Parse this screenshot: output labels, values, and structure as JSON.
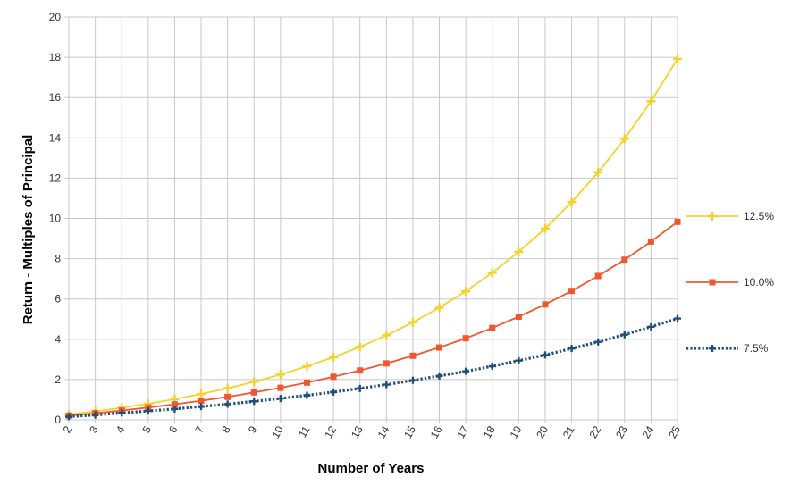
{
  "chart_data": {
    "type": "line",
    "title": "",
    "xlabel": "Number of Years",
    "ylabel": "Return - Multiples of Principal",
    "x": [
      2,
      3,
      4,
      5,
      6,
      7,
      8,
      9,
      10,
      11,
      12,
      13,
      14,
      15,
      16,
      17,
      18,
      19,
      20,
      21,
      22,
      23,
      24,
      25
    ],
    "ylim": [
      0,
      20
    ],
    "yticks": [
      0,
      2,
      4,
      6,
      8,
      10,
      12,
      14,
      16,
      18,
      20
    ],
    "grid": true,
    "legend_position": "right",
    "series": [
      {
        "name": "12.5%",
        "color": "#F5D22B",
        "marker": "star",
        "line_style": "solid",
        "values": [
          0.27,
          0.42,
          0.6,
          0.8,
          1.03,
          1.28,
          1.57,
          1.89,
          2.25,
          2.66,
          3.11,
          3.62,
          4.2,
          4.84,
          5.57,
          6.38,
          7.3,
          8.34,
          9.5,
          10.81,
          12.29,
          13.95,
          15.82,
          17.92
        ]
      },
      {
        "name": "10.0%",
        "color": "#F0572E",
        "marker": "square",
        "line_style": "solid",
        "values": [
          0.21,
          0.33,
          0.46,
          0.61,
          0.77,
          0.95,
          1.14,
          1.36,
          1.59,
          1.85,
          2.14,
          2.45,
          2.8,
          3.18,
          3.59,
          4.05,
          4.56,
          5.12,
          5.73,
          6.4,
          7.14,
          7.95,
          8.85,
          9.83
        ]
      },
      {
        "name": "7.5%",
        "color": "#1F4E79",
        "marker": "star",
        "line_style": "dotted",
        "values": [
          0.16,
          0.24,
          0.34,
          0.44,
          0.54,
          0.66,
          0.78,
          0.92,
          1.06,
          1.22,
          1.38,
          1.56,
          1.75,
          1.96,
          2.18,
          2.41,
          2.66,
          2.94,
          3.22,
          3.54,
          3.87,
          4.23,
          4.62,
          5.03
        ]
      }
    ]
  }
}
